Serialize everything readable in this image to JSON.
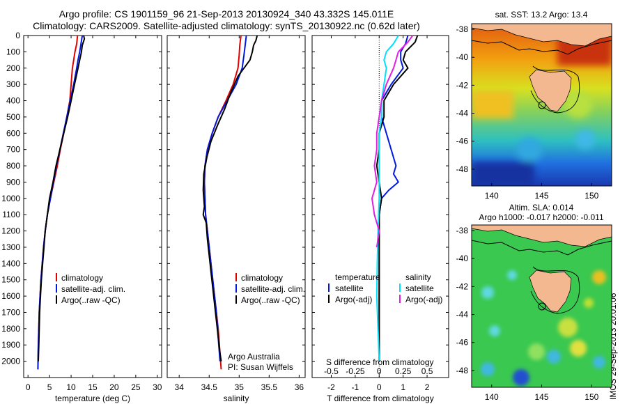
{
  "header": {
    "line1": "Argo profile: CS 1901159_96 21-Sep-2013 20130924_340 43.332S 145.011E",
    "line2": "Climatology: CARS2009. Satellite-adjusted climatology: synTS_20130922.nc (0.62d later)"
  },
  "side_label": "IMOS 29-Sep-2013 20:01:06",
  "colors": {
    "climatology": "#e00000",
    "satellite": "#0018e0",
    "argo": "#000000",
    "sat_salinity": "#00e0ff",
    "argo_adj_salinity": "#e020e0"
  },
  "chart_data": [
    {
      "type": "line",
      "xlabel": "temperature (deg C)",
      "ylim": [
        2100,
        0
      ],
      "xlim": [
        -1,
        31
      ],
      "xticks": [
        "0",
        "5",
        "10",
        "15",
        "20",
        "25",
        "30"
      ],
      "yticks": [
        "0",
        "100",
        "200",
        "300",
        "400",
        "500",
        "600",
        "700",
        "800",
        "900",
        "1000",
        "1100",
        "1200",
        "1300",
        "1400",
        "1500",
        "1600",
        "1700",
        "1800",
        "1900",
        "2000"
      ],
      "legend": [
        "climatology",
        "satellite-adj. clim.",
        "Argo(..raw -QC)"
      ],
      "series": [
        {
          "name": "climatology",
          "color": "#e00000",
          "points": [
            [
              11.5,
              0
            ],
            [
              11.3,
              50
            ],
            [
              10.9,
              100
            ],
            [
              10.6,
              150
            ],
            [
              10.3,
              200
            ],
            [
              10.0,
              300
            ],
            [
              9.7,
              400
            ],
            [
              9.0,
              500
            ],
            [
              8.3,
              600
            ],
            [
              7.5,
              700
            ],
            [
              6.8,
              800
            ],
            [
              6.0,
              900
            ],
            [
              5.2,
              1000
            ],
            [
              4.5,
              1100
            ],
            [
              4.0,
              1200
            ],
            [
              3.6,
              1300
            ],
            [
              3.3,
              1400
            ],
            [
              3.0,
              1500
            ],
            [
              2.8,
              1600
            ],
            [
              2.6,
              1700
            ],
            [
              2.5,
              1800
            ],
            [
              2.4,
              1900
            ],
            [
              2.3,
              2050
            ]
          ]
        },
        {
          "name": "satellite-adj. clim.",
          "color": "#0018e0",
          "points": [
            [
              12.6,
              0
            ],
            [
              12.3,
              50
            ],
            [
              12.0,
              100
            ],
            [
              11.6,
              150
            ],
            [
              11.3,
              200
            ],
            [
              10.6,
              300
            ],
            [
              9.8,
              400
            ],
            [
              9.0,
              500
            ],
            [
              8.2,
              600
            ],
            [
              7.4,
              700
            ],
            [
              6.6,
              800
            ],
            [
              5.9,
              900
            ],
            [
              5.2,
              1000
            ],
            [
              4.5,
              1100
            ],
            [
              4.0,
              1200
            ],
            [
              3.6,
              1300
            ],
            [
              3.3,
              1400
            ],
            [
              3.0,
              1500
            ],
            [
              2.8,
              1600
            ],
            [
              2.6,
              1700
            ],
            [
              2.5,
              1800
            ],
            [
              2.4,
              1900
            ],
            [
              2.3,
              2050
            ]
          ]
        },
        {
          "name": "Argo(..raw -QC)",
          "color": "#000000",
          "points": [
            [
              12.9,
              0
            ],
            [
              13.1,
              20
            ],
            [
              12.6,
              60
            ],
            [
              12.4,
              100
            ],
            [
              12.0,
              150
            ],
            [
              11.6,
              200
            ],
            [
              10.8,
              300
            ],
            [
              10.0,
              400
            ],
            [
              9.2,
              500
            ],
            [
              8.3,
              600
            ],
            [
              7.4,
              700
            ],
            [
              6.5,
              800
            ],
            [
              5.8,
              900
            ],
            [
              5.0,
              1000
            ],
            [
              4.5,
              1100
            ],
            [
              4.0,
              1200
            ],
            [
              3.7,
              1300
            ],
            [
              3.4,
              1400
            ],
            [
              3.1,
              1500
            ],
            [
              2.9,
              1600
            ],
            [
              2.7,
              1700
            ],
            [
              2.6,
              1800
            ],
            [
              2.5,
              1900
            ],
            [
              2.4,
              2000
            ]
          ]
        }
      ]
    },
    {
      "type": "line",
      "xlabel": "salinity",
      "ylim": [
        2100,
        0
      ],
      "xlim": [
        33.8,
        36.1
      ],
      "xticks": [
        "34",
        "34.5",
        "35",
        "35.5",
        "36"
      ],
      "legend": [
        "climatology",
        "satellite-adj. clim.",
        "Argo(..raw -QC)"
      ],
      "annotation": [
        "Argo Australia",
        "PI: Susan Wijffels"
      ],
      "series": [
        {
          "name": "climatology",
          "color": "#e00000",
          "points": [
            [
              35.03,
              0
            ],
            [
              35.01,
              60
            ],
            [
              35.0,
              120
            ],
            [
              34.98,
              200
            ],
            [
              34.9,
              300
            ],
            [
              34.78,
              400
            ],
            [
              34.65,
              500
            ],
            [
              34.55,
              600
            ],
            [
              34.47,
              700
            ],
            [
              34.43,
              800
            ],
            [
              34.42,
              900
            ],
            [
              34.43,
              1000
            ],
            [
              34.44,
              1100
            ],
            [
              34.47,
              1200
            ],
            [
              34.5,
              1300
            ],
            [
              34.53,
              1400
            ],
            [
              34.56,
              1500
            ],
            [
              34.59,
              1600
            ],
            [
              34.62,
              1700
            ],
            [
              34.65,
              1800
            ],
            [
              34.67,
              1900
            ],
            [
              34.7,
              2050
            ]
          ]
        },
        {
          "name": "satellite-adj. clim.",
          "color": "#0018e0",
          "points": [
            [
              35.12,
              0
            ],
            [
              35.1,
              60
            ],
            [
              35.08,
              120
            ],
            [
              35.05,
              200
            ],
            [
              34.95,
              300
            ],
            [
              34.8,
              400
            ],
            [
              34.65,
              500
            ],
            [
              34.55,
              600
            ],
            [
              34.47,
              700
            ],
            [
              34.43,
              800
            ],
            [
              34.42,
              900
            ],
            [
              34.43,
              1000
            ],
            [
              34.44,
              1100
            ],
            [
              34.47,
              1200
            ],
            [
              34.5,
              1300
            ],
            [
              34.53,
              1400
            ],
            [
              34.56,
              1500
            ],
            [
              34.59,
              1600
            ],
            [
              34.62,
              1700
            ],
            [
              34.64,
              1800
            ],
            [
              34.66,
              1900
            ],
            [
              34.68,
              2000
            ]
          ]
        },
        {
          "name": "Argo(..raw -QC)",
          "color": "#000000",
          "points": [
            [
              35.3,
              0
            ],
            [
              35.28,
              30
            ],
            [
              35.24,
              60
            ],
            [
              35.22,
              100
            ],
            [
              35.18,
              150
            ],
            [
              35.08,
              200
            ],
            [
              34.98,
              250
            ],
            [
              34.86,
              350
            ],
            [
              34.76,
              450
            ],
            [
              34.64,
              550
            ],
            [
              34.53,
              650
            ],
            [
              34.46,
              750
            ],
            [
              34.41,
              850
            ],
            [
              34.4,
              950
            ],
            [
              34.42,
              1050
            ],
            [
              34.4,
              1100
            ],
            [
              34.45,
              1150
            ],
            [
              34.47,
              1250
            ],
            [
              34.5,
              1350
            ],
            [
              34.53,
              1450
            ],
            [
              34.56,
              1550
            ],
            [
              34.59,
              1650
            ],
            [
              34.62,
              1750
            ],
            [
              34.65,
              1850
            ],
            [
              34.68,
              1950
            ],
            [
              34.7,
              2000
            ]
          ]
        }
      ]
    },
    {
      "type": "line",
      "xlabel": "T difference from climatology",
      "x2label": "S difference from climatology",
      "ylim": [
        2100,
        0
      ],
      "xlim": [
        -2.8,
        2.9
      ],
      "xticks": [
        "-2",
        "-1",
        "0",
        "1",
        "2"
      ],
      "x2ticks": [
        "-0.5",
        "-0.25",
        "0",
        "0.25",
        "0.5"
      ],
      "legend_temperature": {
        "title": "temperature",
        "items": [
          "satellite",
          "Argo(-adj)"
        ]
      },
      "legend_salinity": {
        "title": "salinity",
        "items": [
          "satellite",
          "Argo(-adj)"
        ]
      },
      "series": [
        {
          "name": "satellite",
          "color": "#0018e0",
          "points": [
            [
              1.2,
              0
            ],
            [
              1.1,
              50
            ],
            [
              0.9,
              100
            ],
            [
              0.9,
              150
            ],
            [
              1.0,
              200
            ],
            [
              0.5,
              300
            ],
            [
              0.1,
              400
            ],
            [
              0.1,
              500
            ],
            [
              0.3,
              600
            ],
            [
              0.5,
              700
            ],
            [
              0.7,
              800
            ],
            [
              0.6,
              850
            ],
            [
              0.8,
              900
            ],
            [
              0.4,
              950
            ],
            [
              0.1,
              1000
            ],
            [
              0.0,
              1100
            ],
            [
              0.0,
              1200
            ],
            [
              0.0,
              1400
            ],
            [
              0.0,
              1600
            ],
            [
              0.0,
              2000
            ]
          ]
        },
        {
          "name": "Argo(-adj)",
          "color": "#000000",
          "points": [
            [
              1.6,
              0
            ],
            [
              1.5,
              40
            ],
            [
              1.1,
              100
            ],
            [
              1.0,
              150
            ],
            [
              1.2,
              200
            ],
            [
              0.6,
              300
            ],
            [
              0.2,
              400
            ],
            [
              0.2,
              500
            ],
            [
              0.0,
              600
            ],
            [
              0.0,
              700
            ],
            [
              -0.1,
              800
            ],
            [
              0.0,
              900
            ],
            [
              0.1,
              1000
            ],
            [
              0.0,
              1100
            ],
            [
              0.0,
              1200
            ],
            [
              0.0,
              1400
            ],
            [
              0.0,
              1600
            ],
            [
              0.0,
              1800
            ],
            [
              0.0,
              2000
            ]
          ]
        },
        {
          "name": "satellite",
          "color": "#00e0ff",
          "points": [
            [
              0.8,
              0
            ],
            [
              0.6,
              50
            ],
            [
              0.3,
              100
            ],
            [
              0.2,
              150
            ],
            [
              0.3,
              200
            ],
            [
              0.2,
              300
            ],
            [
              0.1,
              400
            ],
            [
              0.1,
              500
            ],
            [
              0.0,
              600
            ],
            [
              0.0,
              800
            ],
            [
              0.0,
              1000
            ],
            [
              -0.05,
              1200
            ],
            [
              -0.08,
              1400
            ],
            [
              -0.1,
              1600
            ],
            [
              -0.05,
              1800
            ],
            [
              0.0,
              2000
            ]
          ]
        },
        {
          "name": "Argo(-adj)",
          "color": "#e020e0",
          "points": [
            [
              1.4,
              0
            ],
            [
              1.2,
              40
            ],
            [
              0.8,
              100
            ],
            [
              0.7,
              150
            ],
            [
              0.6,
              200
            ],
            [
              0.3,
              300
            ],
            [
              0.1,
              400
            ],
            [
              0.0,
              500
            ],
            [
              -0.1,
              600
            ],
            [
              -0.1,
              700
            ],
            [
              -0.2,
              800
            ],
            [
              -0.1,
              900
            ],
            [
              -0.3,
              1000
            ],
            [
              -0.2,
              1100
            ],
            [
              0.0,
              1200
            ],
            [
              -0.1,
              1300
            ]
          ]
        }
      ]
    },
    {
      "type": "heatmap",
      "title": "sat. SST: 13.2  Argo: 13.4",
      "xticks": [
        "140",
        "145",
        "150"
      ],
      "yticks": [
        "-38",
        "-40",
        "-42",
        "-44",
        "-46",
        "-48"
      ]
    },
    {
      "type": "heatmap",
      "title": "Altim. SLA: 0.014",
      "subtitle": "Argo h1000: -0.017 h2000: -0.011",
      "xticks": [
        "140",
        "145",
        "150"
      ],
      "yticks": [
        "-38",
        "-40",
        "-42",
        "-44",
        "-46",
        "-48"
      ]
    }
  ]
}
